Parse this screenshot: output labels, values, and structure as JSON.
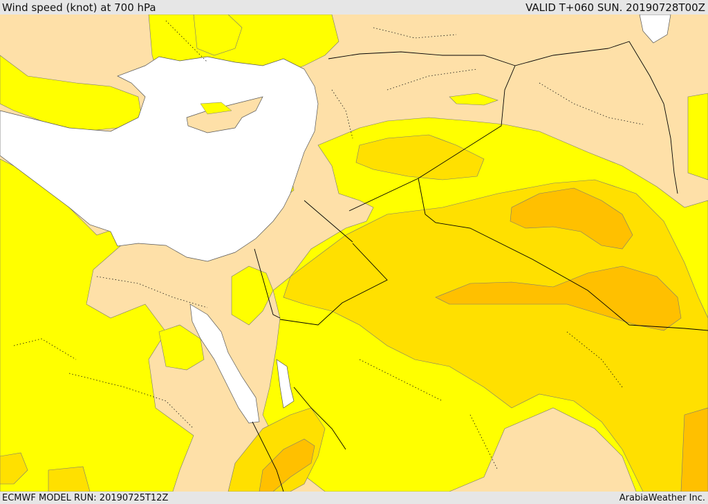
{
  "header": {
    "title": "Wind speed (knot) at 700 hPa",
    "valid": "VALID T+060 SUN. 20190728T00Z"
  },
  "footer": {
    "model_run": "ECMWF MODEL RUN: 20190725T12Z",
    "credit": "ArabiaWeather Inc."
  },
  "colors": {
    "sea": "#ffffff",
    "low_wind": "#fee0a8",
    "band_1": "#ffff00",
    "band_2": "#ffe000",
    "band_3": "#ffc000",
    "band_4": "#ffb000",
    "border": "#000000"
  }
}
